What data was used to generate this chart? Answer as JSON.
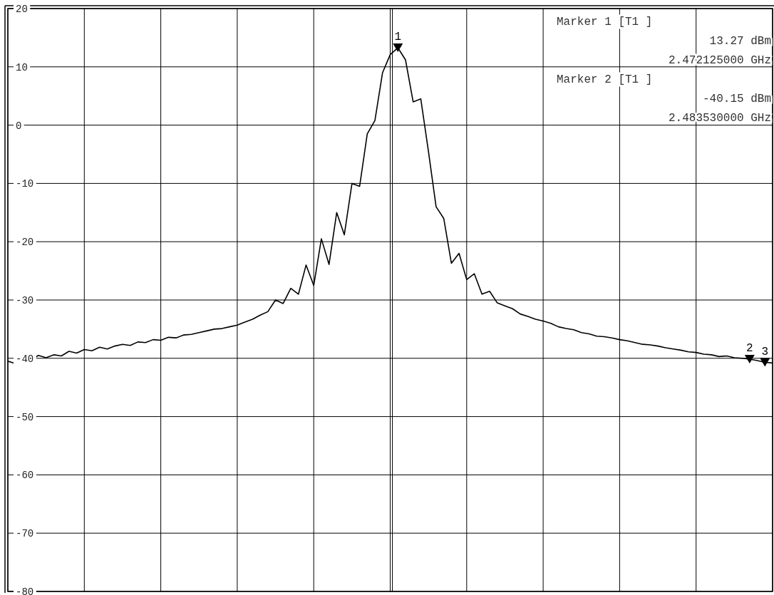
{
  "chart_data": {
    "type": "line",
    "ylim": [
      -80,
      20
    ],
    "categories": [
      null,
      null,
      null,
      null,
      null,
      null,
      null,
      null,
      null,
      null,
      null,
      null,
      null,
      null,
      null,
      null,
      null,
      null,
      null,
      null,
      null,
      null,
      null,
      null,
      null,
      null,
      null,
      null,
      null,
      null,
      null,
      null,
      null,
      null,
      null,
      null,
      null,
      null,
      null,
      null,
      null,
      null,
      null,
      null,
      null,
      null,
      null,
      null,
      null,
      null,
      null,
      null,
      null,
      null,
      null,
      null,
      null,
      null,
      null,
      null,
      null,
      null,
      null,
      null,
      null,
      null,
      null,
      null,
      null,
      null,
      null,
      null,
      null,
      null,
      null,
      null,
      null,
      null,
      null,
      null,
      null,
      null,
      null,
      null,
      null,
      null,
      null,
      null,
      null,
      null,
      null,
      null,
      null,
      null,
      null,
      null,
      null,
      null,
      null,
      null,
      null
    ],
    "yticks": [
      20,
      10,
      0,
      -10,
      -20,
      -30,
      -40,
      -50,
      -60,
      -70,
      -80
    ],
    "tick_labels": "y",
    "grid": true,
    "marker": "none",
    "line_style": "solid",
    "series": [
      {
        "color": "#000000",
        "values": [
          -40.5,
          -40.9,
          -40,
          -40.3,
          -39.5,
          -39.9,
          -39.4,
          -39.6,
          -38.8,
          -39.1,
          -38.5,
          -38.7,
          -38.1,
          -38.4,
          -37.9,
          -37.6,
          -37.8,
          -37.2,
          -37.3,
          -36.8,
          -36.9,
          -36.4,
          -36.5,
          -36,
          -35.9,
          -35.6,
          -35.3,
          -35,
          -34.9,
          -34.6,
          -34.3,
          -33.8,
          -33.3,
          -32.6,
          -32,
          -30,
          -30.6,
          -28,
          -29,
          -24,
          -27.5,
          -19.5,
          -23.9,
          -15,
          -18.8,
          -10,
          -10.5,
          -1.5,
          0.8,
          9,
          12.1,
          13.27,
          11.2,
          4,
          4.5,
          -4.5,
          -14,
          -16,
          -23.7,
          -22,
          -26.5,
          -25.5,
          -29,
          -28.5,
          -30.5,
          -31,
          -31.5,
          -32.4,
          -32.8,
          -33.3,
          -33.6,
          -34,
          -34.6,
          -34.9,
          -35.1,
          -35.6,
          -35.8,
          -36.2,
          -36.3,
          -36.5,
          -36.8,
          -37,
          -37.3,
          -37.6,
          -37.7,
          -37.9,
          -38.2,
          -38.4,
          -38.6,
          -38.9,
          -39,
          -39.3,
          -39.4,
          -39.7,
          -39.6,
          -39.9,
          -40,
          -40.15,
          -40.4,
          -40.7,
          -40.8
        ]
      },
      {
        "type": "scatter",
        "color": "#000000",
        "marker": "triangle",
        "values": [
          null,
          null,
          null,
          null,
          null,
          null,
          null,
          null,
          null,
          null,
          null,
          null,
          null,
          null,
          null,
          null,
          null,
          null,
          null,
          null,
          null,
          null,
          null,
          null,
          null,
          null,
          null,
          null,
          null,
          null,
          null,
          null,
          null,
          null,
          null,
          null,
          null,
          null,
          null,
          null,
          null,
          null,
          null,
          null,
          null,
          null,
          null,
          null,
          null,
          null,
          null,
          13.27,
          null,
          null,
          null,
          null,
          null,
          null,
          null,
          null,
          null,
          null,
          null,
          null,
          null,
          null,
          null,
          null,
          null,
          null,
          null,
          null,
          null,
          null,
          null,
          null,
          null,
          null,
          null,
          null,
          null,
          null,
          null,
          null,
          null,
          null,
          null,
          null,
          null,
          null,
          null,
          null,
          null,
          null,
          null,
          null,
          null,
          -40.15,
          null,
          -40.7,
          null
        ]
      }
    ],
    "annotations": [
      "Marker 1 [T1 ]",
      "13.27 dBm",
      "2.472125000 GHz",
      "Marker 2 [T1 ]",
      "-40.15 dBm",
      "2.483530000 GHz",
      {
        "text": "1",
        "y": 13.27
      },
      {
        "text": "2",
        "y": -40.15
      },
      {
        "text": "3",
        "y": -40.7
      }
    ]
  }
}
